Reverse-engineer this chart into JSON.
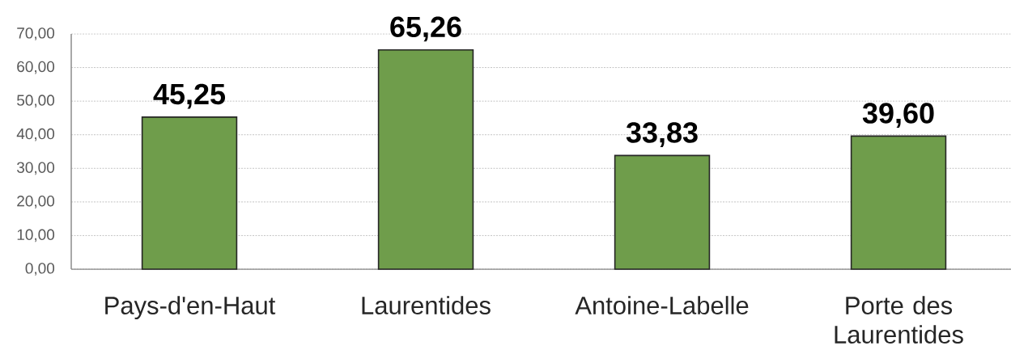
{
  "chart_data": {
    "type": "bar",
    "categories": [
      "Pays-d'en-Haut",
      "Laurentides",
      "Antoine-Labelle",
      "Porte des Laurentides"
    ],
    "values": [
      45.25,
      65.26,
      33.83,
      39.6
    ],
    "value_labels": [
      "45,25",
      "65,26",
      "33,83",
      "39,60"
    ],
    "color": "#6f9d4b",
    "ylim": [
      0,
      70
    ],
    "yticks": [
      {
        "value": 0,
        "label": "0,00"
      },
      {
        "value": 10,
        "label": "10,00"
      },
      {
        "value": 20,
        "label": "20,00"
      },
      {
        "value": 30,
        "label": "30,00"
      },
      {
        "value": 40,
        "label": "40,00"
      },
      {
        "value": 50,
        "label": "50,00"
      },
      {
        "value": 60,
        "label": "60,00"
      },
      {
        "value": 70,
        "label": "70,00"
      }
    ],
    "grid": "y"
  }
}
